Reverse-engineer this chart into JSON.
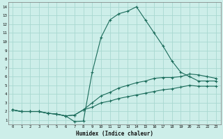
{
  "xlabel": "Humidex (Indice chaleur)",
  "bg_color": "#cdeee9",
  "grid_color": "#a8d8d0",
  "line_color": "#1a6b5a",
  "xlim": [
    -0.5,
    23.5
  ],
  "ylim": [
    0.5,
    14.5
  ],
  "xticks": [
    0,
    1,
    2,
    3,
    4,
    5,
    6,
    7,
    8,
    9,
    10,
    11,
    12,
    13,
    14,
    15,
    16,
    17,
    18,
    19,
    20,
    21,
    22,
    23
  ],
  "yticks": [
    1,
    2,
    3,
    4,
    5,
    6,
    7,
    8,
    9,
    10,
    11,
    12,
    13,
    14
  ],
  "curve_max_x": [
    0,
    1,
    2,
    3,
    4,
    5,
    6,
    7,
    8,
    9,
    10,
    11,
    12,
    13,
    14,
    15,
    16,
    17,
    18,
    19,
    20,
    21,
    22,
    23
  ],
  "curve_max_y": [
    2.2,
    2.0,
    2.0,
    2.0,
    1.8,
    1.7,
    1.5,
    0.85,
    0.9,
    6.5,
    10.5,
    12.5,
    13.2,
    13.5,
    14.0,
    12.5,
    11.0,
    9.5,
    7.8,
    6.5,
    6.0,
    5.5,
    5.5,
    5.5
  ],
  "curve_avg_x": [
    0,
    1,
    2,
    3,
    4,
    5,
    6,
    7,
    8,
    9,
    10,
    11,
    12,
    13,
    14,
    15,
    16,
    17,
    18,
    19,
    20,
    21,
    22,
    23
  ],
  "curve_avg_y": [
    2.2,
    2.0,
    2.0,
    2.0,
    1.8,
    1.7,
    1.5,
    1.6,
    2.2,
    3.0,
    3.8,
    4.2,
    4.7,
    5.0,
    5.3,
    5.5,
    5.8,
    5.9,
    5.9,
    6.0,
    6.3,
    6.2,
    6.0,
    5.8
  ],
  "curve_min_x": [
    0,
    1,
    2,
    3,
    4,
    5,
    6,
    7,
    8,
    9,
    10,
    11,
    12,
    13,
    14,
    15,
    16,
    17,
    18,
    19,
    20,
    21,
    22,
    23
  ],
  "curve_min_y": [
    2.2,
    2.0,
    2.0,
    2.0,
    1.8,
    1.7,
    1.5,
    1.6,
    2.2,
    2.5,
    3.0,
    3.2,
    3.5,
    3.7,
    3.9,
    4.1,
    4.3,
    4.5,
    4.6,
    4.8,
    5.0,
    4.9,
    4.9,
    4.9
  ]
}
